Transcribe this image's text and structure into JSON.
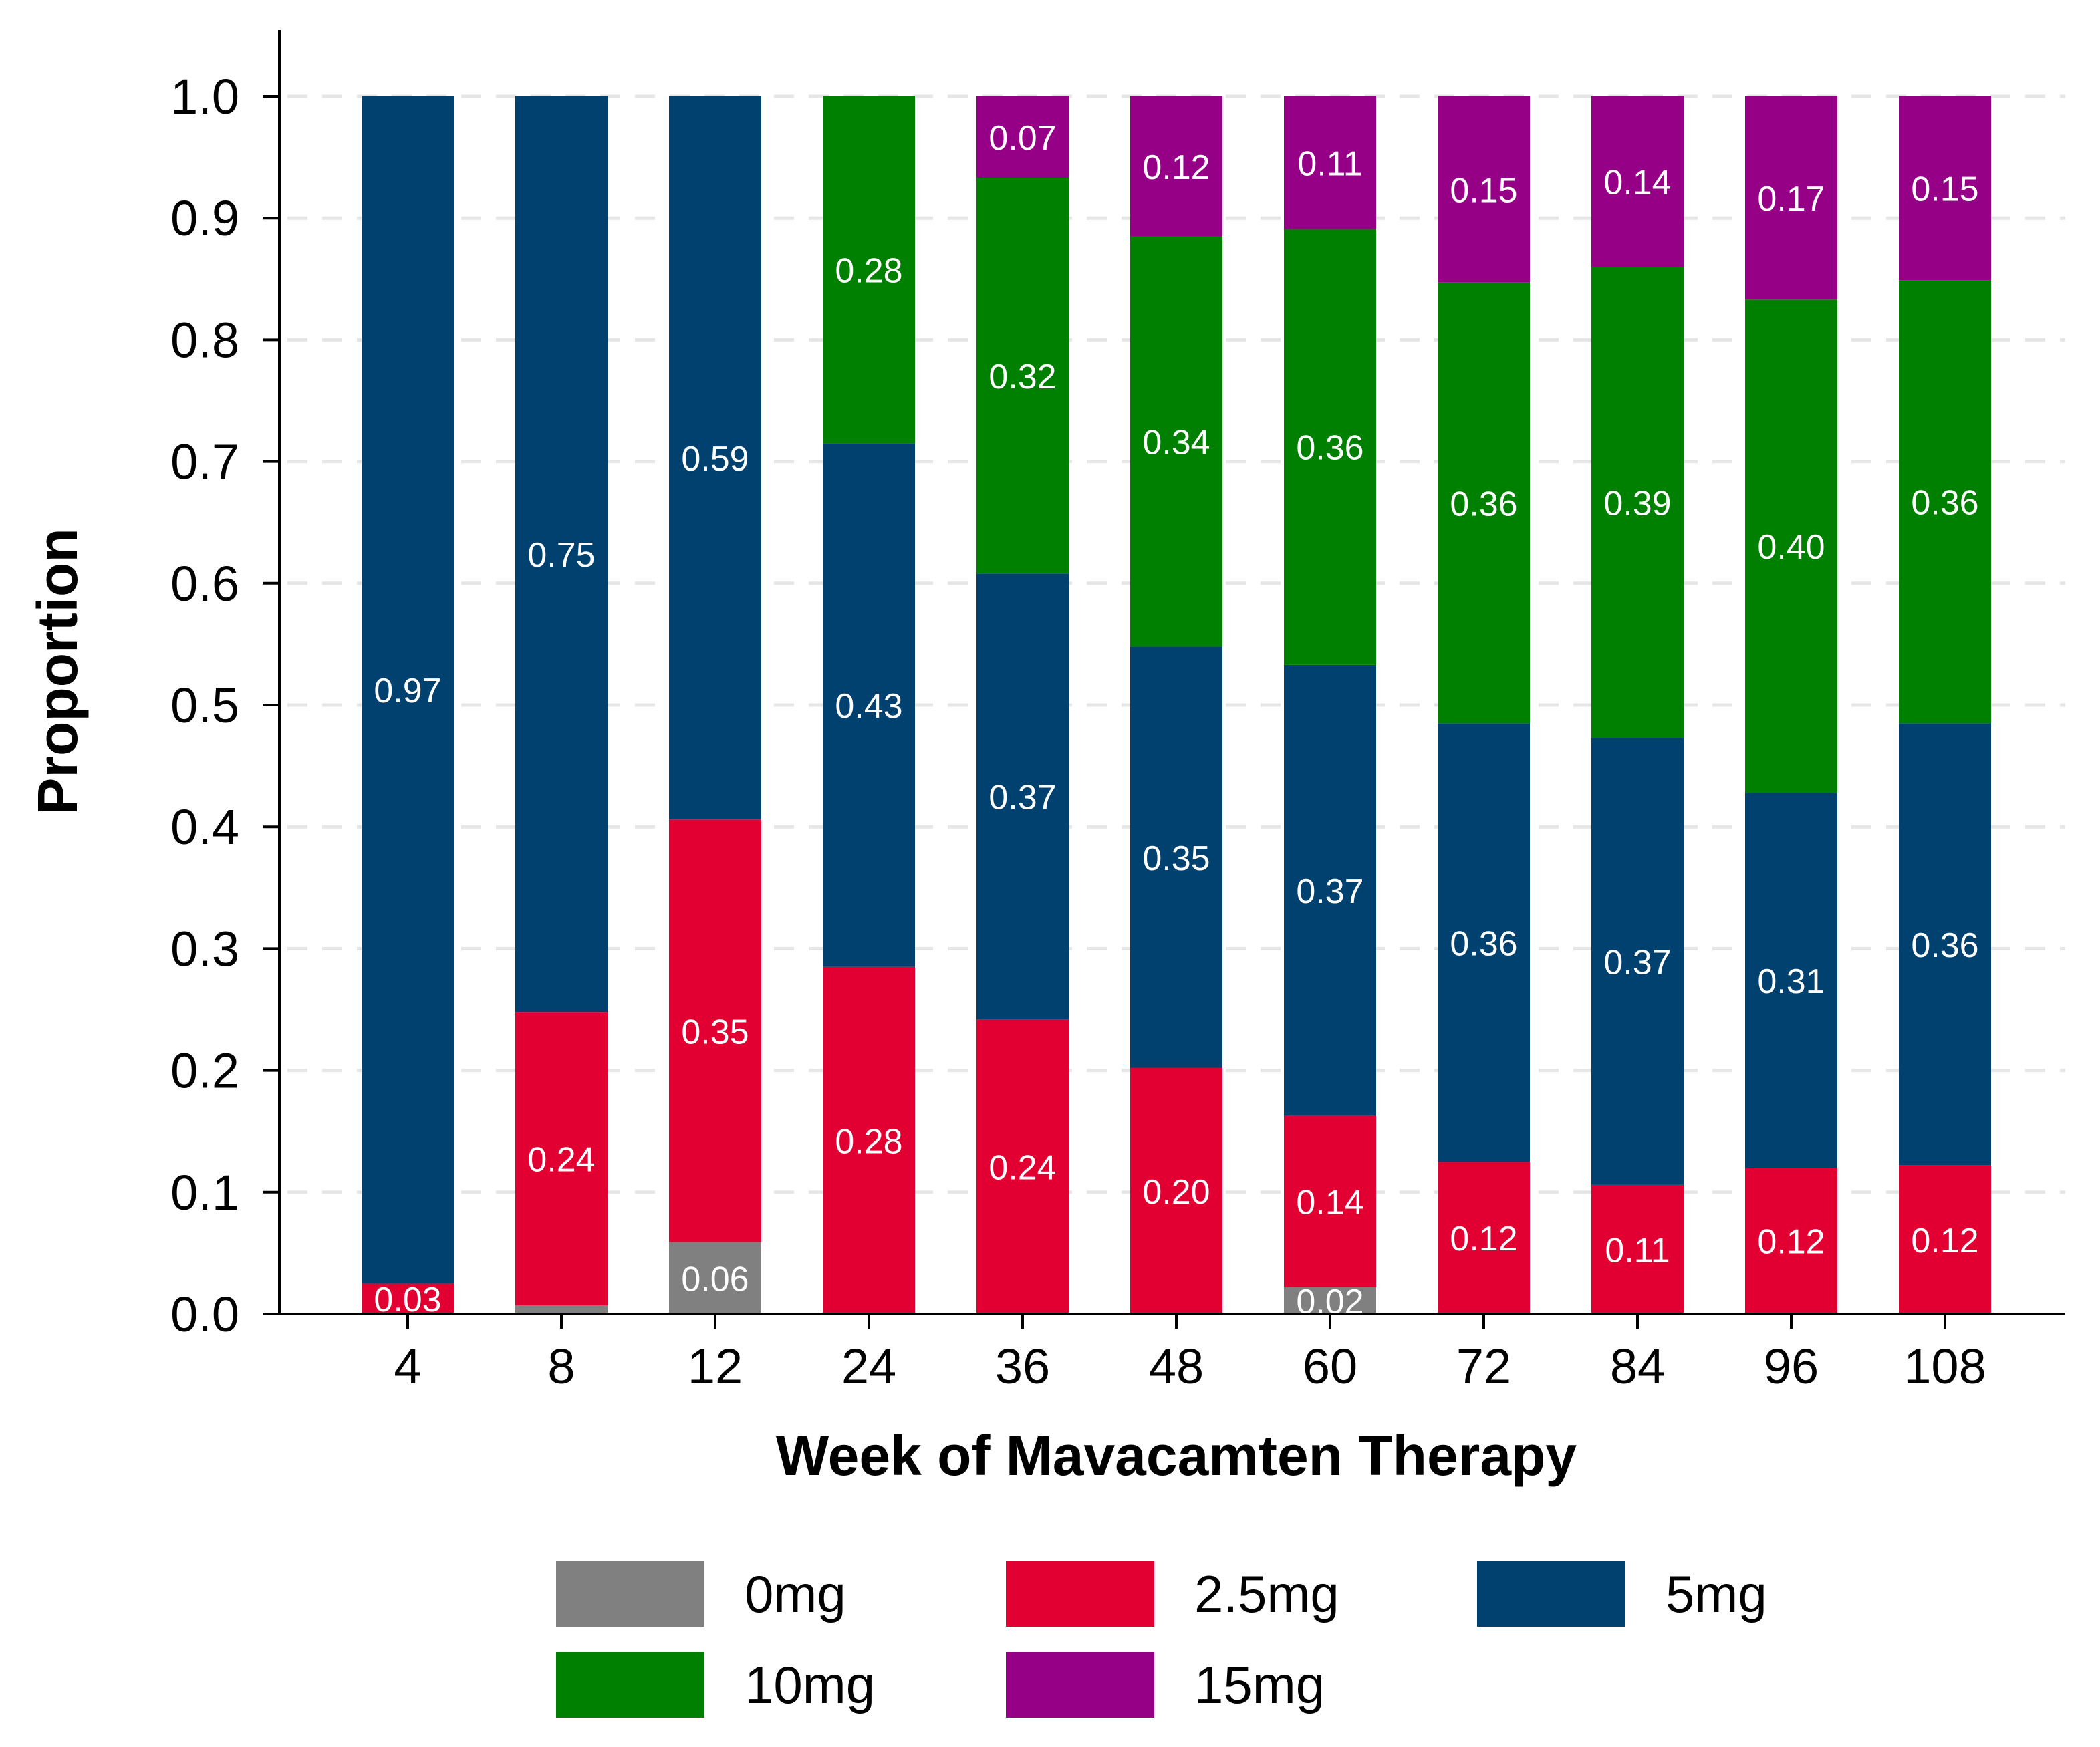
{
  "chart_data": {
    "type": "bar",
    "stacked": true,
    "xlabel": "Week of Mavacamten Therapy",
    "ylabel": "Proportion",
    "ylim": [
      0,
      1.0
    ],
    "yticks": [
      "0.0",
      "0.1",
      "0.2",
      "0.3",
      "0.4",
      "0.5",
      "0.6",
      "0.7",
      "0.8",
      "0.9",
      "1.0"
    ],
    "grid": "horizontal dashed",
    "legend_position": "bottom",
    "categories": [
      "4",
      "8",
      "12",
      "24",
      "36",
      "48",
      "60",
      "72",
      "84",
      "96",
      "108"
    ],
    "series": [
      {
        "name": "0mg",
        "color": "#808080",
        "values": [
          0,
          0.007,
          0.059,
          0,
          0,
          0,
          0.022,
          0,
          0,
          0,
          0
        ],
        "labels": [
          "",
          "",
          "0.06",
          "",
          "",
          "",
          "0.02",
          "",
          "",
          "",
          ""
        ]
      },
      {
        "name": "2.5mg",
        "color": "#e20032",
        "values": [
          0.025,
          0.241,
          0.347,
          0.285,
          0.242,
          0.202,
          0.141,
          0.125,
          0.106,
          0.12,
          0.122
        ],
        "labels": [
          "0.03",
          "0.24",
          "0.35",
          "0.28",
          "0.24",
          "0.20",
          "0.14",
          "0.12",
          "0.11",
          "0.12",
          "0.12"
        ]
      },
      {
        "name": "5mg",
        "color": "#004170",
        "values": [
          0.975,
          0.752,
          0.594,
          0.43,
          0.366,
          0.346,
          0.37,
          0.36,
          0.367,
          0.308,
          0.363
        ],
        "labels": [
          "0.97",
          "0.75",
          "0.59",
          "0.43",
          "0.37",
          "0.35",
          "0.37",
          "0.36",
          "0.37",
          "0.31",
          "0.36"
        ]
      },
      {
        "name": "10mg",
        "color": "#008000",
        "values": [
          0,
          0,
          0,
          0.285,
          0.325,
          0.337,
          0.358,
          0.362,
          0.387,
          0.405,
          0.364
        ],
        "labels": [
          "",
          "",
          "",
          "0.28",
          "0.32",
          "0.34",
          "0.36",
          "0.36",
          "0.39",
          "0.40",
          "0.36"
        ]
      },
      {
        "name": "15mg",
        "color": "#960087",
        "values": [
          0,
          0,
          0,
          0,
          0.067,
          0.115,
          0.109,
          0.153,
          0.14,
          0.167,
          0.151
        ],
        "labels": [
          "",
          "",
          "",
          "",
          "0.07",
          "0.12",
          "0.11",
          "0.15",
          "0.14",
          "0.17",
          "0.15"
        ]
      }
    ]
  }
}
